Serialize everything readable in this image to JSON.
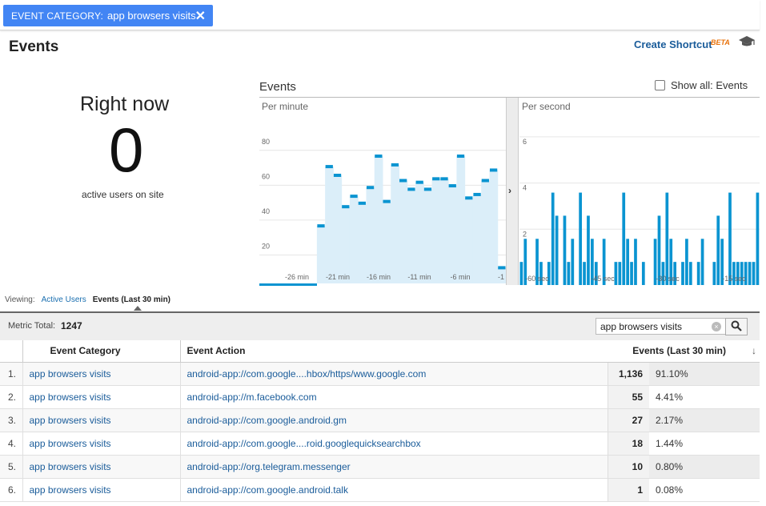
{
  "filter": {
    "key": "EVENT CATEGORY:",
    "value": "app browsers visits",
    "close_glyph": "✕"
  },
  "page": {
    "title": "Events",
    "create_shortcut": "Create Shortcut",
    "beta": "BETA",
    "help_icon": "graduation-cap-icon"
  },
  "right_now": {
    "title": "Right now",
    "count": "0",
    "subtitle": "active users on site"
  },
  "events_chart": {
    "title": "Events",
    "show_all_label": "Show all: Events",
    "show_all_checked": false,
    "per_minute_label": "Per minute",
    "per_second_label": "Per second",
    "expand_glyph": "›"
  },
  "chart_data": [
    {
      "type": "bar",
      "title": "Per minute",
      "y_ticks": [
        "20",
        "40",
        "60",
        "80"
      ],
      "ylim": [
        0,
        90
      ],
      "x_tick_labels": [
        "-26 min",
        "-21 min",
        "-16 min",
        "-11 min",
        "-6 min",
        "-1"
      ],
      "categories": [
        "-30",
        "-29",
        "-28",
        "-27",
        "-26",
        "-25",
        "-24",
        "-23",
        "-22",
        "-21",
        "-20",
        "-19",
        "-18",
        "-17",
        "-16",
        "-15",
        "-14",
        "-13",
        "-12",
        "-11",
        "-10",
        "-9",
        "-8",
        "-7",
        "-6",
        "-5",
        "-4",
        "-3",
        "-2",
        "-1"
      ],
      "values": [
        0,
        0,
        0,
        0,
        0,
        0,
        0,
        33,
        67,
        62,
        44,
        50,
        46,
        55,
        73,
        47,
        68,
        59,
        54,
        58,
        54,
        60,
        60,
        56,
        73,
        49,
        51,
        59,
        65,
        9
      ],
      "colors": {
        "bar": "#0a94d1",
        "fill": "#dbeef9",
        "baseline": "#0a94d1"
      }
    },
    {
      "type": "bar",
      "title": "Per second",
      "y_ticks": [
        "2",
        "4",
        "6"
      ],
      "ylim": [
        0,
        7
      ],
      "x_tick_labels": [
        "-60 sec",
        "-45 sec",
        "-30 sec",
        "-15 sec"
      ],
      "values": [
        1,
        2,
        0,
        0,
        2,
        1,
        0,
        1,
        4,
        3,
        0,
        3,
        1,
        2,
        0,
        4,
        1,
        3,
        2,
        1,
        0,
        2,
        0,
        0,
        1,
        1,
        4,
        2,
        1,
        2,
        0,
        1,
        0,
        0,
        2,
        3,
        1,
        4,
        2,
        1,
        0,
        1,
        2,
        1,
        0,
        1,
        2,
        0,
        0,
        1,
        3,
        2,
        0,
        4,
        1,
        1,
        1,
        1,
        1,
        1,
        4
      ],
      "colors": {
        "bar": "#0a94d1"
      }
    }
  ],
  "viewing": {
    "label": "Viewing:",
    "tabs": [
      "Active Users",
      "Events (Last 30 min)"
    ],
    "active_tab": "Events (Last 30 min)"
  },
  "metric": {
    "label": "Metric Total:",
    "value": "1247",
    "search_value": "app browsers visits",
    "clear_icon": "clear-icon",
    "search_icon": "search-icon"
  },
  "table": {
    "headers": [
      "Event Category",
      "Event Action",
      "Events (Last 30 min)"
    ],
    "rows": [
      {
        "num": "1.",
        "category": "app browsers visits",
        "action": "android-app://com.google....hbox/https/www.google.com",
        "value": "1,136",
        "pct": "91.10%"
      },
      {
        "num": "2.",
        "category": "app browsers visits",
        "action": "android-app://m.facebook.com",
        "value": "55",
        "pct": "4.41%"
      },
      {
        "num": "3.",
        "category": "app browsers visits",
        "action": "android-app://com.google.android.gm",
        "value": "27",
        "pct": "2.17%"
      },
      {
        "num": "4.",
        "category": "app browsers visits",
        "action": "android-app://com.google....roid.googlequicksearchbox",
        "value": "18",
        "pct": "1.44%"
      },
      {
        "num": "5.",
        "category": "app browsers visits",
        "action": "android-app://org.telegram.messenger",
        "value": "10",
        "pct": "0.80%"
      },
      {
        "num": "6.",
        "category": "app browsers visits",
        "action": "android-app://com.google.android.talk",
        "value": "1",
        "pct": "0.08%"
      }
    ]
  }
}
